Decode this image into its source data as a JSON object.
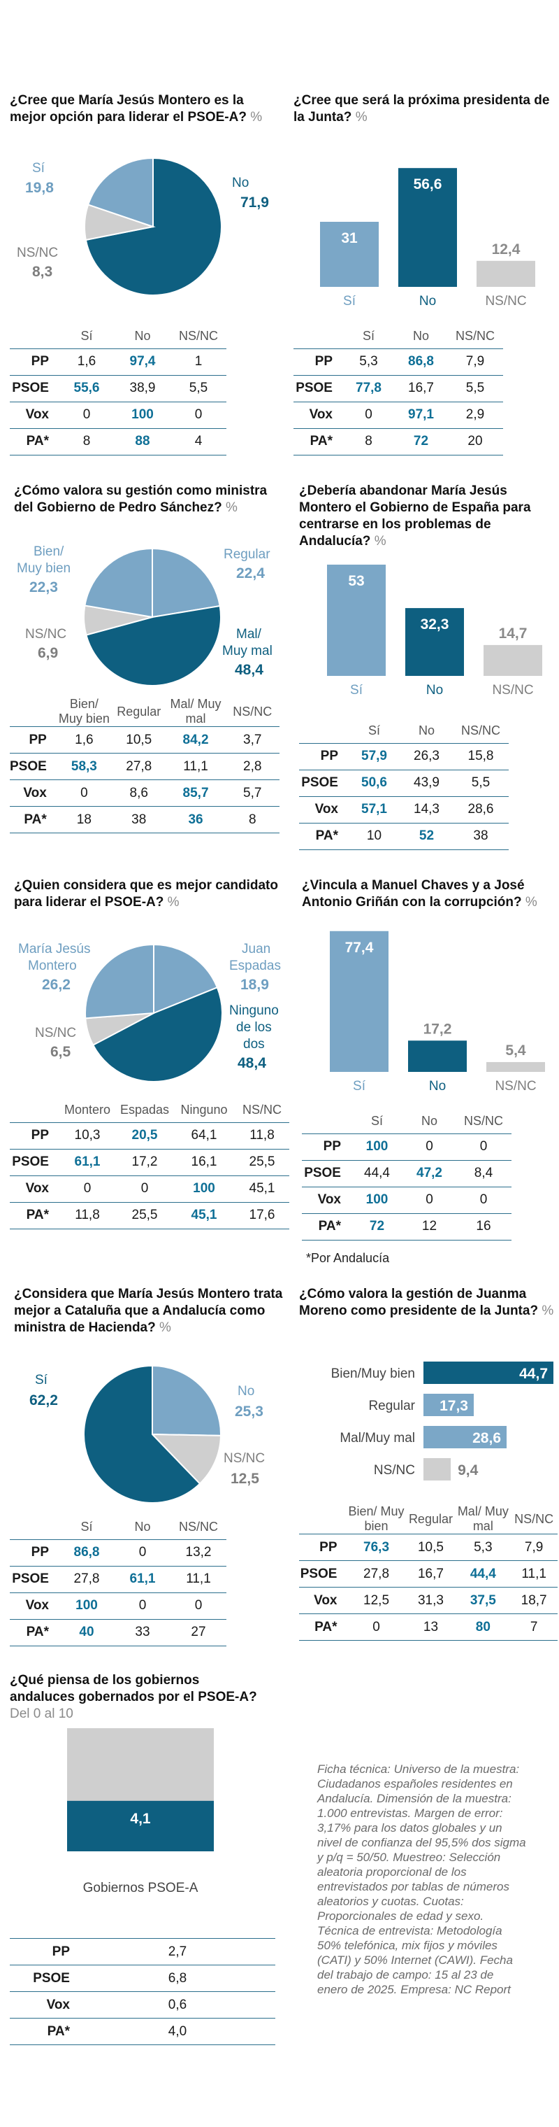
{
  "colors": {
    "dark": "#0e5f80",
    "light": "#7ba7c7",
    "grey": "#cfcfcf",
    "highlight": "#0e6f96"
  },
  "q1": {
    "title": "¿Cree que María Jesús Montero es la mejor opción para liderar el PSOE-A?",
    "unit": "%",
    "chart_data": {
      "type": "pie",
      "labels": [
        "Sí",
        "NS/NC",
        "No"
      ],
      "values": [
        19.8,
        8.3,
        71.9
      ]
    },
    "labels": {
      "si": "Sí",
      "si_v": "19,8",
      "nsnc": "NS/NC",
      "nsnc_v": "8,3",
      "no": "No",
      "no_v": "71,9"
    },
    "table": {
      "headers": [
        "",
        "Sí",
        "No",
        "NS/NC"
      ],
      "rows": [
        [
          "PP",
          "1,6",
          "97,4",
          "1"
        ],
        [
          "PSOE",
          "55,6",
          "38,9",
          "5,5"
        ],
        [
          "Vox",
          "0",
          "100",
          "0"
        ],
        [
          "PA*",
          "8",
          "88",
          "4"
        ]
      ]
    }
  },
  "q2": {
    "title": "¿Cree que será la próxima presidenta de la Junta?",
    "unit": "%",
    "chart_data": {
      "type": "bar",
      "categories": [
        "Sí",
        "No",
        "NS/NC"
      ],
      "values": [
        31,
        56.6,
        12.4
      ]
    },
    "labels": {
      "v1": "31",
      "v2": "56,6",
      "v3": "12,4",
      "c1": "Sí",
      "c2": "No",
      "c3": "NS/NC"
    },
    "table": {
      "headers": [
        "",
        "Sí",
        "No",
        "NS/NC"
      ],
      "rows": [
        [
          "PP",
          "5,3",
          "86,8",
          "7,9"
        ],
        [
          "PSOE",
          "77,8",
          "16,7",
          "5,5"
        ],
        [
          "Vox",
          "0",
          "97,1",
          "2,9"
        ],
        [
          "PA*",
          "8",
          "72",
          "20"
        ]
      ]
    }
  },
  "q3": {
    "title": "¿Cómo valora su gestión como ministra del Gobierno de Pedro Sánchez?",
    "unit": "%",
    "chart_data": {
      "type": "pie",
      "labels": [
        "Bien/Muy bien",
        "Regular",
        "Mal/Muy mal",
        "NS/NC"
      ],
      "values": [
        22.3,
        22.4,
        48.4,
        6.9
      ]
    },
    "labels": {
      "bien1": "Bien/",
      "bien2": "Muy bien",
      "bien_v": "22,3",
      "reg": "Regular",
      "reg_v": "22,4",
      "mal1": "Mal/",
      "mal2": "Muy mal",
      "mal_v": "48,4",
      "nsnc": "NS/NC",
      "nsnc_v": "6,9"
    },
    "table": {
      "headers": [
        "",
        "Bien/ Muy bien",
        "Regular",
        "Mal/ Muy mal",
        "NS/NC"
      ],
      "rows": [
        [
          "PP",
          "1,6",
          "10,5",
          "84,2",
          "3,7"
        ],
        [
          "PSOE",
          "58,3",
          "27,8",
          "11,1",
          "2,8"
        ],
        [
          "Vox",
          "0",
          "8,6",
          "85,7",
          "5,7"
        ],
        [
          "PA*",
          "18",
          "38",
          "36",
          "8"
        ]
      ]
    }
  },
  "q4": {
    "title": "¿Debería abandonar María Jesús Montero el Gobierno de España para centrarse en los problemas de Andalucía?",
    "unit": "%",
    "chart_data": {
      "type": "bar",
      "categories": [
        "Sí",
        "No",
        "NS/NC"
      ],
      "values": [
        53,
        32.3,
        14.7
      ]
    },
    "labels": {
      "v1": "53",
      "v2": "32,3",
      "v3": "14,7",
      "c1": "Sí",
      "c2": "No",
      "c3": "NS/NC"
    },
    "table": {
      "headers": [
        "",
        "Sí",
        "No",
        "NS/NC"
      ],
      "rows": [
        [
          "PP",
          "57,9",
          "26,3",
          "15,8"
        ],
        [
          "PSOE",
          "50,6",
          "43,9",
          "5,5"
        ],
        [
          "Vox",
          "57,1",
          "14,3",
          "28,6"
        ],
        [
          "PA*",
          "10",
          "52",
          "38"
        ]
      ]
    }
  },
  "q5": {
    "title": "¿Quien considera que es mejor candidato para liderar el PSOE-A?",
    "unit": "%",
    "chart_data": {
      "type": "pie",
      "labels": [
        "María Jesús Montero",
        "Juan Espadas",
        "Ninguno de los dos",
        "NS/NC"
      ],
      "values": [
        26.2,
        18.9,
        48.4,
        6.5
      ]
    },
    "labels": {
      "mj1": "María Jesús",
      "mj2": "Montero",
      "mj_v": "26,2",
      "je1": "Juan",
      "je2": "Espadas",
      "je_v": "18,9",
      "ni1": "Ninguno",
      "ni2": "de los",
      "ni3": "dos",
      "ni_v": "48,4",
      "nsnc": "NS/NC",
      "nsnc_v": "6,5"
    },
    "table": {
      "headers": [
        "",
        "Montero",
        "Espadas",
        "Ninguno",
        "NS/NC"
      ],
      "rows": [
        [
          "PP",
          "10,3",
          "20,5",
          "64,1",
          "11,8"
        ],
        [
          "PSOE",
          "61,1",
          "17,2",
          "16,1",
          "25,5"
        ],
        [
          "Vox",
          "0",
          "0",
          "100",
          "45,1"
        ],
        [
          "PA*",
          "11,8",
          "25,5",
          "45,1",
          "17,6"
        ]
      ]
    }
  },
  "q6": {
    "title": "¿Vincula a Manuel Chaves y a José Antonio Griñán con la corrupción?",
    "unit": "%",
    "chart_data": {
      "type": "bar",
      "categories": [
        "Sí",
        "No",
        "NS/NC"
      ],
      "values": [
        77.4,
        17.2,
        5.4
      ]
    },
    "labels": {
      "v1": "77,4",
      "v2": "17,2",
      "v3": "5,4",
      "c1": "Sí",
      "c2": "No",
      "c3": "NS/NC"
    },
    "table": {
      "headers": [
        "",
        "Sí",
        "No",
        "NS/NC"
      ],
      "rows": [
        [
          "PP",
          "100",
          "0",
          "0"
        ],
        [
          "PSOE",
          "44,4",
          "47,2",
          "8,4"
        ],
        [
          "Vox",
          "100",
          "0",
          "0"
        ],
        [
          "PA*",
          "72",
          "12",
          "16"
        ]
      ]
    },
    "note": "*Por Andalucía"
  },
  "q7": {
    "title": "¿Considera que María Jesús Montero trata mejor a Cataluña que a Andalucía como ministra de Hacienda?",
    "unit": "%",
    "chart_data": {
      "type": "pie",
      "labels": [
        "Sí",
        "No",
        "NS/NC"
      ],
      "values": [
        62.2,
        25.3,
        12.5
      ]
    },
    "labels": {
      "si": "Sí",
      "si_v": "62,2",
      "no": "No",
      "no_v": "25,3",
      "nsnc": "NS/NC",
      "nsnc_v": "12,5"
    },
    "table": {
      "headers": [
        "",
        "Sí",
        "No",
        "NS/NC"
      ],
      "rows": [
        [
          "PP",
          "86,8",
          "0",
          "13,2"
        ],
        [
          "PSOE",
          "27,8",
          "61,1",
          "11,1"
        ],
        [
          "Vox",
          "100",
          "0",
          "0"
        ],
        [
          "PA*",
          "40",
          "33",
          "27"
        ]
      ]
    }
  },
  "q8": {
    "title": "¿Cómo valora la gestión de Juanma Moreno como presidente de la Junta?",
    "unit": "%",
    "chart_data": {
      "type": "bar",
      "orientation": "horizontal",
      "categories": [
        "Bien/Muy bien",
        "Regular",
        "Mal/Muy mal",
        "NS/NC"
      ],
      "values": [
        44.7,
        17.3,
        28.6,
        9.4
      ],
      "xlim": [
        0,
        44.7
      ]
    },
    "labels": {
      "c1": "Bien/Muy bien",
      "c2": "Regular",
      "c3": "Mal/Muy mal",
      "c4": "NS/NC",
      "v1": "44,7",
      "v2": "17,3",
      "v3": "28,6",
      "v4": "9,4"
    },
    "table": {
      "headers": [
        "",
        "Bien/ Muy bien",
        "Regular",
        "Mal/ Muy mal",
        "NS/NC"
      ],
      "rows": [
        [
          "PP",
          "76,3",
          "10,5",
          "5,3",
          "7,9"
        ],
        [
          "PSOE",
          "27,8",
          "16,7",
          "44,4",
          "11,1"
        ],
        [
          "Vox",
          "12,5",
          "31,3",
          "37,5",
          "18,7"
        ],
        [
          "PA*",
          "0",
          "13",
          "80",
          "7"
        ]
      ]
    }
  },
  "q9": {
    "title": "¿Qué piensa de los gobiernos andaluces gobernados por el PSOE-A?",
    "unit": "Del 0 al 10",
    "chart_data": {
      "type": "bar",
      "categories": [
        "Gobiernos PSOE-A"
      ],
      "values": [
        4.1
      ],
      "ylim": [
        0,
        10
      ]
    },
    "labels": {
      "v1": "4,1",
      "c1": "Gobiernos PSOE-A"
    },
    "table": {
      "rows": [
        [
          "PP",
          "2,7"
        ],
        [
          "PSOE",
          "6,8"
        ],
        [
          "Vox",
          "0,6"
        ],
        [
          "PA*",
          "4,0"
        ]
      ]
    }
  },
  "ficha": "Ficha técnica: Universo de la muestra: Ciudadanos españoles residentes en Andalucía. Dimensión de la muestra: 1.000 entrevistas. Margen de error: 3,17% para los datos globales y un nivel de confianza del 95,5% dos sigma y p/q = 50/50. Muestreo: Selección aleatoria proporcional de los entrevistados por tablas de números aleatorios y cuotas. Cuotas: Proporcionales de edad y sexo. Técnica de entrevista: Metodología 50% telefónica, mix fijos y móviles (CATI) y 50% Internet (CAWI). Fecha del trabajo de campo: 15 al 23 de enero de 2025. Empresa: NC Report"
}
